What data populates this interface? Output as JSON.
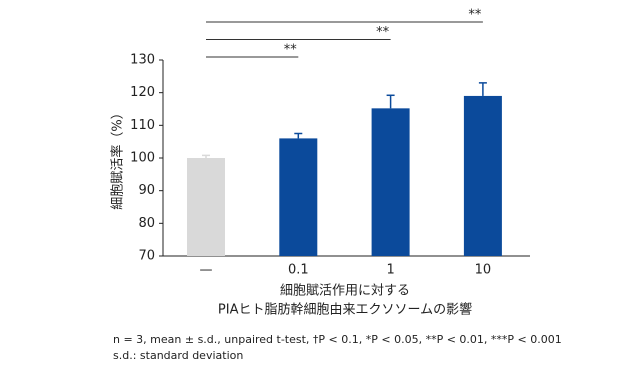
{
  "chart_data": {
    "type": "bar",
    "y_label": "細胞賦活率（%）",
    "x_label": [
      "細胞賦活作用に対する",
      "PIAヒト脂肪幹細胞由来エクソソームの影響"
    ],
    "categories": [
      "—",
      "0.1",
      "1",
      "10"
    ],
    "values": [
      100,
      106,
      115.2,
      119
    ],
    "errors": [
      0.8,
      1.5,
      4,
      4
    ],
    "colors": [
      "#d9d9d9",
      "#0b4a9b",
      "#0b4a9b",
      "#0b4a9b"
    ],
    "significance": [
      null,
      "**",
      "**",
      "**"
    ],
    "ylim": [
      70,
      130
    ],
    "yticks": [
      70,
      80,
      90,
      100,
      110,
      120,
      130
    ],
    "notes": [
      "n = 3, mean ± s.d., unpaired t-test, †P < 0.1, *P < 0.05, **P < 0.01, ***P < 0.001",
      "s.d.: standard deviation"
    ]
  }
}
